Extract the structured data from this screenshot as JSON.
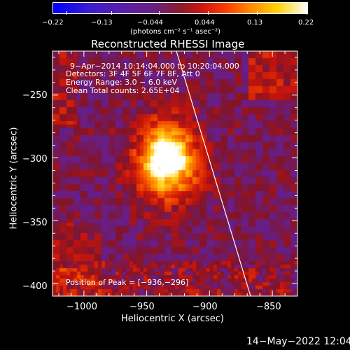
{
  "colorbar": {
    "tick_labels": [
      "−0.22",
      "−0.13",
      "−0.044",
      "0.044",
      "0.13",
      "0.22"
    ],
    "unit_label": "(photons cm⁻² s⁻¹ asec⁻²)",
    "range": [
      -0.22,
      0.22
    ]
  },
  "image": {
    "title": "Reconstructed RHESSI Image",
    "xlabel": "Heliocentric X (arcsec)",
    "ylabel": "Heliocentric Y (arcsec)",
    "x_ticks": [
      "−1000",
      "−950",
      "−900",
      "−850"
    ],
    "y_ticks": [
      "−250",
      "−300",
      "−350",
      "−400"
    ],
    "xlim": [
      -1025,
      -830
    ],
    "ylim": [
      -410,
      -215
    ],
    "annotations": {
      "time_range": "9−Apr−2014 10:14:04.000 to 10:20:04.000",
      "detectors": "Detectors: 3F 4F 5F 6F 7F 8F, Att 0",
      "energy": "Energy Range: 3.0 − 6.0 keV",
      "clean": "Clean    Total counts: 2.65E+04",
      "peak": "Position of Peak = [−936,−296]"
    },
    "peak_position": [
      -936,
      -296
    ]
  },
  "footer": {
    "timestamp": "14−May−2022 12:04"
  },
  "colors": {
    "limb_line": "#ffffff",
    "background": "#000000"
  }
}
